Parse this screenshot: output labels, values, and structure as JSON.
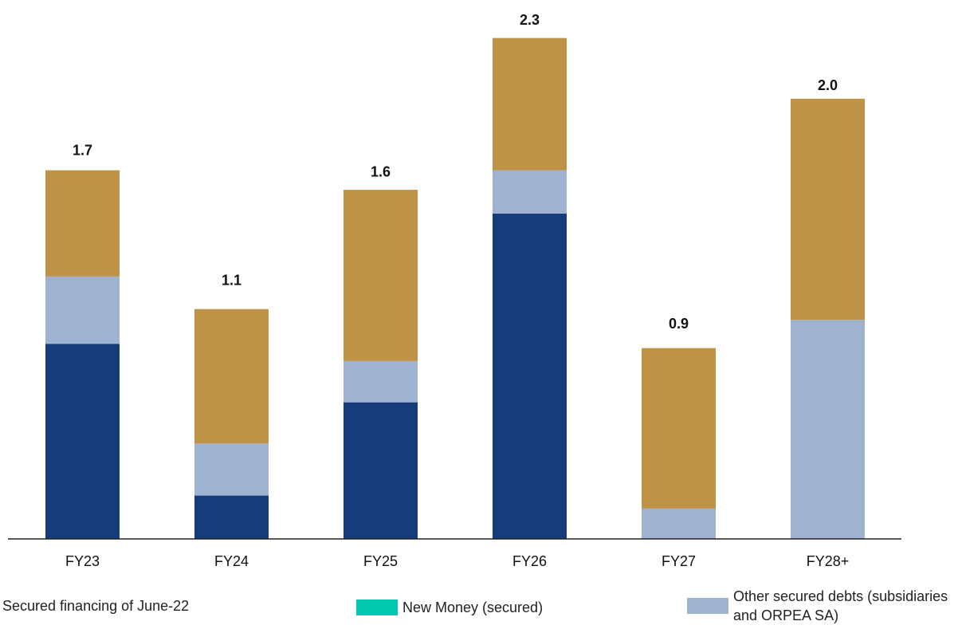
{
  "chart_data": {
    "type": "stacked-bar",
    "categories": [
      "FY23",
      "FY24",
      "FY25",
      "FY26",
      "FY27",
      "FY28+"
    ],
    "series": [
      {
        "name": "Secured financing of June-22",
        "color": "#163d7a",
        "values": [
          0.9,
          0.2,
          0.63,
          1.5,
          0,
          0
        ]
      },
      {
        "name": "New Money (secured)",
        "color": "#00c9b1",
        "values": [
          0,
          0,
          0,
          0,
          0,
          0
        ]
      },
      {
        "name": "Other secured debts (subsidiaries and ORPEA SA)",
        "color": "#9fb3d1",
        "values": [
          0.31,
          0.24,
          0.19,
          0.2,
          0.14,
          1.01
        ]
      },
      {
        "color": "#be9347",
        "values": [
          0.49,
          0.62,
          0.79,
          0.61,
          0.74,
          1.02
        ]
      }
    ],
    "totals": [
      1.7,
      1.1,
      1.6,
      2.3,
      0.9,
      2.0
    ],
    "total_labels": [
      "1.7",
      "1.1",
      "1.6",
      "2.3",
      "0.9",
      "2.0"
    ],
    "ylim": [
      0,
      2.5
    ]
  }
}
